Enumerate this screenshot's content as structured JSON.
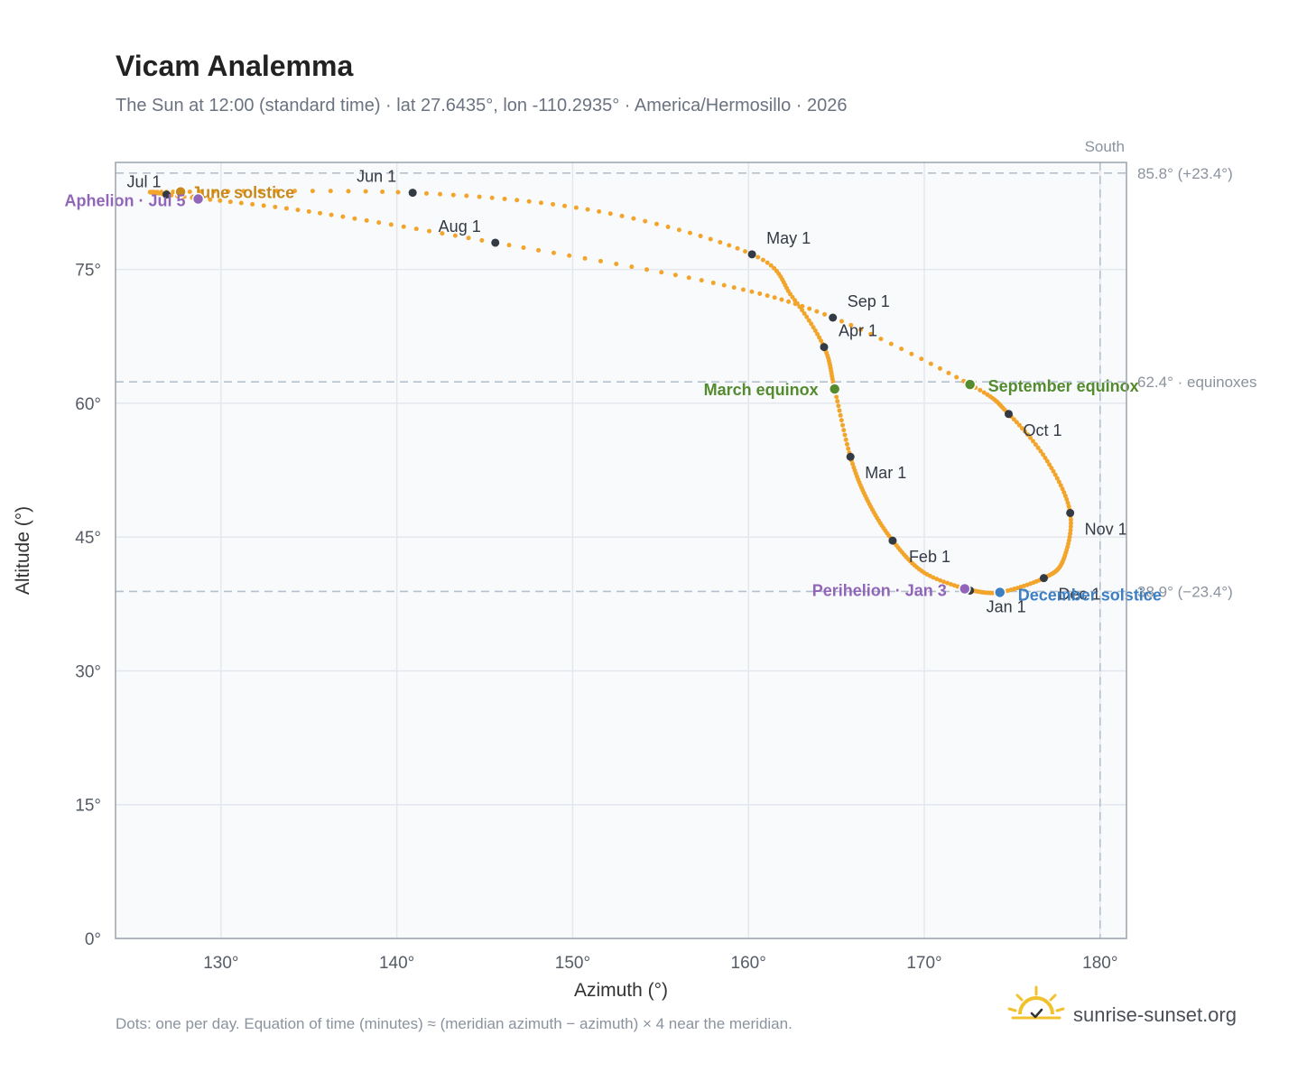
{
  "chart_data": {
    "type": "scatter",
    "title": "Vicam Analemma",
    "subtitle": "The Sun at 12:00 (standard time) · lat 27.6435°, lon -110.2935° · America/Hermosillo · 2026",
    "xlabel": "Azimuth (°)",
    "ylabel": "Altitude (°)",
    "xlim": [
      124,
      181.5
    ],
    "ylim": [
      0,
      87
    ],
    "xticks": [
      130,
      140,
      150,
      160,
      170,
      180
    ],
    "xtick_labels": [
      "130°",
      "140°",
      "150°",
      "160°",
      "170°",
      "180°"
    ],
    "yticks": [
      0,
      15,
      30,
      45,
      60,
      75
    ],
    "ytick_labels": [
      "0°",
      "15°",
      "30°",
      "45°",
      "60°",
      "75°"
    ],
    "grid": true,
    "reference_lines": {
      "horizontal": [
        {
          "y": 85.8,
          "label": "85.8° (+23.4°)"
        },
        {
          "y": 62.4,
          "label": "62.4° · equinoxes"
        },
        {
          "y": 38.9,
          "label": "38.9° (−23.4°)"
        }
      ],
      "vertical": [
        {
          "x": 180,
          "label": "South"
        }
      ]
    },
    "series": [
      {
        "color": "#f2a52a",
        "anchors": [
          {
            "date": "Jan 1",
            "az": 172.6,
            "alt": 39.0
          },
          {
            "date": "Jan 15",
            "az": 170.0,
            "alt": 41.0
          },
          {
            "date": "Feb 1",
            "az": 168.2,
            "alt": 44.6
          },
          {
            "date": "Feb 15",
            "az": 166.8,
            "alt": 49.0
          },
          {
            "date": "Mar 1",
            "az": 165.8,
            "alt": 54.0
          },
          {
            "date": "Mar 20",
            "az": 164.9,
            "alt": 61.6
          },
          {
            "date": "Apr 1",
            "az": 164.3,
            "alt": 66.3
          },
          {
            "date": "Apr 15",
            "az": 162.5,
            "alt": 71.9
          },
          {
            "date": "May 1",
            "az": 160.2,
            "alt": 76.7
          },
          {
            "date": "May 15",
            "az": 151.5,
            "alt": 81.5
          },
          {
            "date": "Jun 1",
            "az": 140.9,
            "alt": 83.6
          },
          {
            "date": "Jun 21",
            "az": 127.7,
            "alt": 83.7
          },
          {
            "date": "Jul 1",
            "az": 126.9,
            "alt": 83.4
          },
          {
            "date": "Jul 15",
            "az": 135.0,
            "alt": 81.5
          },
          {
            "date": "Aug 1",
            "az": 145.6,
            "alt": 78.0
          },
          {
            "date": "Aug 15",
            "az": 158.0,
            "alt": 73.5
          },
          {
            "date": "Sep 1",
            "az": 164.8,
            "alt": 69.6
          },
          {
            "date": "Sep 22",
            "az": 172.6,
            "alt": 62.1
          },
          {
            "date": "Oct 1",
            "az": 174.8,
            "alt": 58.8
          },
          {
            "date": "Oct 15",
            "az": 177.0,
            "alt": 53.5
          },
          {
            "date": "Nov 1",
            "az": 178.3,
            "alt": 47.7
          },
          {
            "date": "Nov 15",
            "az": 177.9,
            "alt": 42.4
          },
          {
            "date": "Dec 1",
            "az": 176.8,
            "alt": 40.4
          },
          {
            "date": "Dec 21",
            "az": 174.3,
            "alt": 38.8
          },
          {
            "date": "Dec 31",
            "az": 172.7,
            "alt": 39.0
          }
        ]
      }
    ],
    "month_markers": [
      {
        "label": "Jan 1",
        "az": 172.6,
        "alt": 39.0
      },
      {
        "label": "Feb 1",
        "az": 168.2,
        "alt": 44.6
      },
      {
        "label": "Mar 1",
        "az": 165.8,
        "alt": 54.0
      },
      {
        "label": "Apr 1",
        "az": 164.3,
        "alt": 66.3
      },
      {
        "label": "May 1",
        "az": 160.2,
        "alt": 76.7
      },
      {
        "label": "Jun 1",
        "az": 140.9,
        "alt": 83.6
      },
      {
        "label": "Jul 1",
        "az": 126.9,
        "alt": 83.4
      },
      {
        "label": "Aug 1",
        "az": 145.6,
        "alt": 78.0
      },
      {
        "label": "Sep 1",
        "az": 164.8,
        "alt": 69.6
      },
      {
        "label": "Oct 1",
        "az": 174.8,
        "alt": 58.8
      },
      {
        "label": "Nov 1",
        "az": 178.3,
        "alt": 47.7
      },
      {
        "label": "Dec 1",
        "az": 176.8,
        "alt": 40.4
      }
    ],
    "events": [
      {
        "label": "June solstice",
        "az": 127.7,
        "alt": 83.7,
        "color": "#c8891a"
      },
      {
        "label": "Aphelion · Jul 5",
        "az": 128.7,
        "alt": 82.9,
        "color": "#9166b8"
      },
      {
        "label": "March equinox",
        "az": 164.9,
        "alt": 61.6,
        "color": "#558b2f"
      },
      {
        "label": "September equinox",
        "az": 172.6,
        "alt": 62.1,
        "color": "#558b2f"
      },
      {
        "label": "Perihelion · Jan 3",
        "az": 172.3,
        "alt": 39.2,
        "color": "#9166b8"
      },
      {
        "label": "December solstice",
        "az": 174.3,
        "alt": 38.8,
        "color": "#3d7fc2"
      }
    ]
  },
  "footnote": "Dots: one per day. Equation of time (minutes) ≈ (meridian azimuth − azimuth) × 4 near the meridian.",
  "brand": {
    "text": "sunrise-sunset.org",
    "icon": "sun-logo-icon",
    "icon_color": "#f2c12e"
  }
}
